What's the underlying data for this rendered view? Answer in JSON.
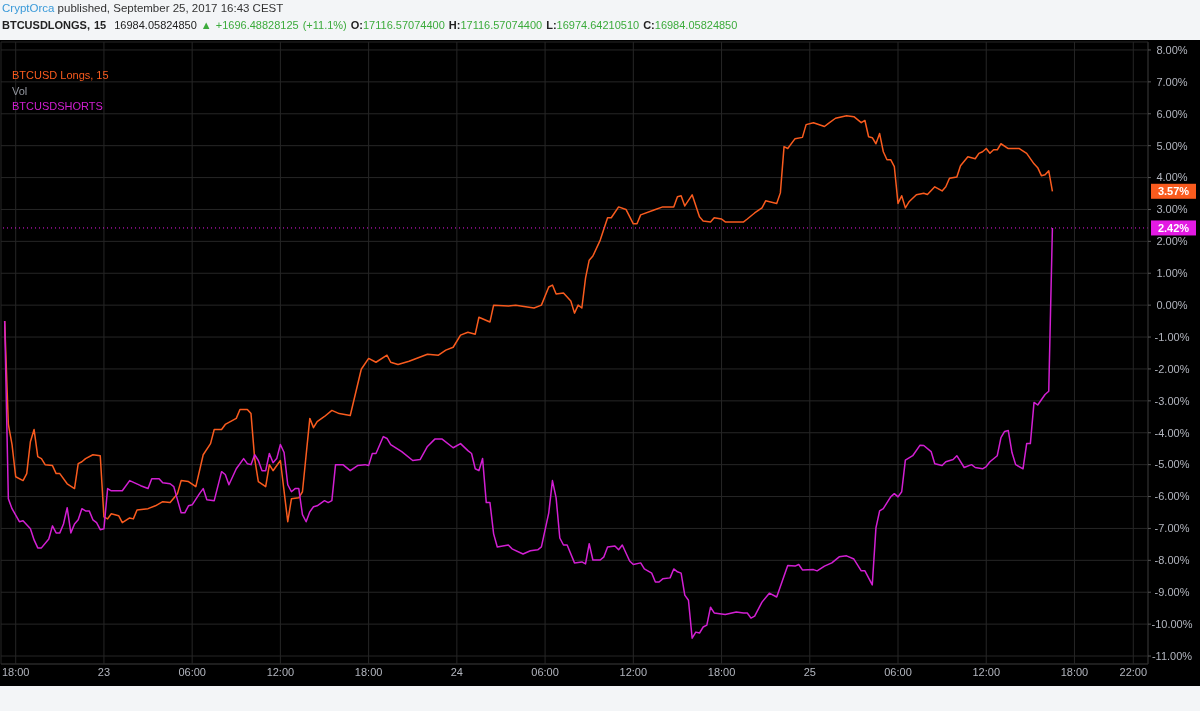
{
  "chart_data": {
    "type": "line",
    "title": "CryptOrca published, September 25, 2017 16:43 CEST",
    "subtitle": "BTCUSDLONGS, 15 16984.05824850 ▲ +1696.48828125 (+11.1%) O:17116.57074400 H:17116.57074400 L:16974.64210510 C:16984.05824850",
    "xlim": [
      "2017-09-22T17:00",
      "2017-09-25T23:00"
    ],
    "xticks": [
      {
        "value": "2017-09-22T18:00",
        "label": "18:00"
      },
      {
        "value": "2017-09-23T00:00",
        "label": "23"
      },
      {
        "value": "2017-09-23T06:00",
        "label": "06:00"
      },
      {
        "value": "2017-09-23T12:00",
        "label": "12:00"
      },
      {
        "value": "2017-09-23T18:00",
        "label": "18:00"
      },
      {
        "value": "2017-09-24T00:00",
        "label": "24"
      },
      {
        "value": "2017-09-24T06:00",
        "label": "06:00"
      },
      {
        "value": "2017-09-24T12:00",
        "label": "12:00"
      },
      {
        "value": "2017-09-24T18:00",
        "label": "18:00"
      },
      {
        "value": "2017-09-25T00:00",
        "label": "25"
      },
      {
        "value": "2017-09-25T06:00",
        "label": "06:00"
      },
      {
        "value": "2017-09-25T12:00",
        "label": "12:00"
      },
      {
        "value": "2017-09-25T18:00",
        "label": "18:00"
      },
      {
        "value": "2017-09-25T22:00",
        "label": "22:00"
      }
    ],
    "ylim": [
      -11.25,
      8.25
    ],
    "yticks": [
      {
        "value": 8,
        "label": "8.00%"
      },
      {
        "value": 7,
        "label": "7.00%"
      },
      {
        "value": 6,
        "label": "6.00%"
      },
      {
        "value": 5,
        "label": "5.00%"
      },
      {
        "value": 4,
        "label": "4.00%"
      },
      {
        "value": 3,
        "label": "3.00%"
      },
      {
        "value": 2,
        "label": "2.00%"
      },
      {
        "value": 1,
        "label": "1.00%"
      },
      {
        "value": 0,
        "label": "0.00%"
      },
      {
        "value": -1,
        "label": "-1.00%"
      },
      {
        "value": -2,
        "label": "-2.00%"
      },
      {
        "value": -3,
        "label": "-3.00%"
      },
      {
        "value": -4,
        "label": "-4.00%"
      },
      {
        "value": -5,
        "label": "-5.00%"
      },
      {
        "value": -6,
        "label": "-6.00%"
      },
      {
        "value": -7,
        "label": "-7.00%"
      },
      {
        "value": -8,
        "label": "-8.00%"
      },
      {
        "value": -9,
        "label": "-9.00%"
      },
      {
        "value": -10,
        "label": "-10.00%"
      },
      {
        "value": -11,
        "label": "-11.00%"
      }
    ],
    "grid": true,
    "legend": "top left",
    "series": [
      {
        "name": "BTCUSD Longs, 15",
        "color": "#f95b1e",
        "x": [
          "2017-09-22T17:15",
          "2017-09-22T17:30",
          "2017-09-22T17:45",
          "2017-09-22T18:00",
          "2017-09-22T18:30",
          "2017-09-22T18:45",
          "2017-09-22T19:00",
          "2017-09-22T19:15",
          "2017-09-22T19:30",
          "2017-09-22T19:45",
          "2017-09-22T20:00",
          "2017-09-22T20:30",
          "2017-09-22T20:45",
          "2017-09-22T21:00",
          "2017-09-22T21:30",
          "2017-09-22T22:00",
          "2017-09-22T22:15",
          "2017-09-22T22:30",
          "2017-09-22T22:45",
          "2017-09-22T23:15",
          "2017-09-22T23:45",
          "2017-09-23T00:00",
          "2017-09-23T00:15",
          "2017-09-23T00:30",
          "2017-09-23T01:00",
          "2017-09-23T01:15",
          "2017-09-23T01:45",
          "2017-09-23T02:00",
          "2017-09-23T02:15",
          "2017-09-23T03:00",
          "2017-09-23T03:30",
          "2017-09-23T04:00",
          "2017-09-23T04:30",
          "2017-09-23T05:00",
          "2017-09-23T05:15",
          "2017-09-23T05:45",
          "2017-09-23T06:15",
          "2017-09-23T06:45",
          "2017-09-23T07:15",
          "2017-09-23T07:30",
          "2017-09-23T08:00",
          "2017-09-23T08:15",
          "2017-09-23T09:00",
          "2017-09-23T09:15",
          "2017-09-23T09:45",
          "2017-09-23T10:00",
          "2017-09-23T10:15",
          "2017-09-23T10:30",
          "2017-09-23T11:00",
          "2017-09-23T11:15",
          "2017-09-23T11:30",
          "2017-09-23T12:00",
          "2017-09-23T12:30",
          "2017-09-23T12:45",
          "2017-09-23T13:15",
          "2017-09-23T13:30",
          "2017-09-23T14:00",
          "2017-09-23T14:15",
          "2017-09-23T14:30",
          "2017-09-23T15:00",
          "2017-09-23T15:30",
          "2017-09-23T16:00",
          "2017-09-23T16:45",
          "2017-09-23T17:30",
          "2017-09-23T18:00",
          "2017-09-23T18:30",
          "2017-09-23T19:15",
          "2017-09-23T19:30",
          "2017-09-23T20:00",
          "2017-09-23T20:45",
          "2017-09-23T22:00",
          "2017-09-23T22:45",
          "2017-09-23T23:15",
          "2017-09-23T23:45",
          "2017-09-24T00:15",
          "2017-09-24T00:45",
          "2017-09-24T01:15",
          "2017-09-24T01:30",
          "2017-09-24T02:15",
          "2017-09-24T02:30",
          "2017-09-24T03:30",
          "2017-09-24T04:00",
          "2017-09-24T05:15",
          "2017-09-24T05:45",
          "2017-09-24T06:15",
          "2017-09-24T06:30",
          "2017-09-24T06:45",
          "2017-09-24T07:15",
          "2017-09-24T07:45",
          "2017-09-24T08:00",
          "2017-09-24T08:15",
          "2017-09-24T08:30",
          "2017-09-24T08:45",
          "2017-09-24T09:00",
          "2017-09-24T09:15",
          "2017-09-24T09:45",
          "2017-09-24T10:15",
          "2017-09-24T10:30",
          "2017-09-24T11:00",
          "2017-09-24T11:30",
          "2017-09-24T12:00",
          "2017-09-24T12:15",
          "2017-09-24T12:30",
          "2017-09-24T13:30",
          "2017-09-24T14:00",
          "2017-09-24T14:45",
          "2017-09-24T15:00",
          "2017-09-24T15:15",
          "2017-09-24T15:30",
          "2017-09-24T16:00",
          "2017-09-24T16:30",
          "2017-09-24T16:45",
          "2017-09-24T17:15",
          "2017-09-24T17:30",
          "2017-09-24T18:00",
          "2017-09-24T18:15",
          "2017-09-24T19:30",
          "2017-09-24T19:45",
          "2017-09-24T20:15",
          "2017-09-24T20:45",
          "2017-09-24T21:00",
          "2017-09-24T21:45",
          "2017-09-24T22:00",
          "2017-09-24T22:15",
          "2017-09-24T22:30",
          "2017-09-24T23:00",
          "2017-09-24T23:30",
          "2017-09-24T23:45",
          "2017-09-25T00:15",
          "2017-09-25T01:00",
          "2017-09-25T01:15",
          "2017-09-25T01:45",
          "2017-09-25T02:30",
          "2017-09-25T03:00",
          "2017-09-25T03:30",
          "2017-09-25T03:45",
          "2017-09-25T04:00",
          "2017-09-25T04:15",
          "2017-09-25T04:30",
          "2017-09-25T04:45",
          "2017-09-25T05:00",
          "2017-09-25T05:15",
          "2017-09-25T05:30",
          "2017-09-25T05:45",
          "2017-09-25T06:00",
          "2017-09-25T06:15",
          "2017-09-25T06:30",
          "2017-09-25T06:45",
          "2017-09-25T07:15",
          "2017-09-25T07:45",
          "2017-09-25T08:00",
          "2017-09-25T08:30",
          "2017-09-25T09:00",
          "2017-09-25T09:15",
          "2017-09-25T09:30",
          "2017-09-25T10:00",
          "2017-09-25T10:15",
          "2017-09-25T10:45",
          "2017-09-25T11:15",
          "2017-09-25T11:30",
          "2017-09-25T11:45",
          "2017-09-25T12:00",
          "2017-09-25T12:15",
          "2017-09-25T12:30",
          "2017-09-25T12:45",
          "2017-09-25T13:00",
          "2017-09-25T13:30",
          "2017-09-25T14:15",
          "2017-09-25T14:45",
          "2017-09-25T15:15",
          "2017-09-25T15:30",
          "2017-09-25T15:45",
          "2017-09-25T16:00",
          "2017-09-25T16:15",
          "2017-09-25T16:30"
        ],
        "values": [
          -0.5,
          -3.74,
          -4.37,
          -5.38,
          -5.5,
          -5.28,
          -4.28,
          -3.9,
          -4.75,
          -4.81,
          -5,
          -5.03,
          -5.28,
          -5.28,
          -5.6,
          -5.75,
          -4.97,
          -4.91,
          -4.81,
          -4.69,
          -4.72,
          -6.64,
          -6.7,
          -6.54,
          -6.6,
          -6.82,
          -6.67,
          -6.7,
          -6.42,
          -6.38,
          -6.29,
          -6.16,
          -6.19,
          -5.91,
          -5.5,
          -5.53,
          -5.69,
          -4.69,
          -4.34,
          -3.9,
          -3.9,
          -3.74,
          -3.55,
          -3.27,
          -3.27,
          -3.4,
          -4.81,
          -5.53,
          -5.69,
          -5,
          -5.19,
          -4.87,
          -6.79,
          -6.07,
          -6.04,
          -5.85,
          -3.55,
          -3.84,
          -3.65,
          -3.49,
          -3.3,
          -3.4,
          -3.46,
          -2.01,
          -1.67,
          -1.79,
          -1.57,
          -1.79,
          -1.86,
          -1.76,
          -1.54,
          -1.57,
          -1.41,
          -1.32,
          -0.94,
          -0.85,
          -0.91,
          -0.38,
          -0.53,
          0,
          -0.03,
          0,
          -0.09,
          0,
          0.57,
          0.63,
          0.35,
          0.38,
          0.13,
          -0.25,
          0,
          -0.09,
          0.85,
          1.41,
          1.54,
          2.04,
          2.74,
          2.74,
          3.08,
          3,
          2.55,
          2.55,
          2.83,
          3,
          3.08,
          3.08,
          3.4,
          3.43,
          3.11,
          3.46,
          2.77,
          2.64,
          2.61,
          2.74,
          2.7,
          2.61,
          2.61,
          2.7,
          2.89,
          3.05,
          3.27,
          3.19,
          3.52,
          4.97,
          4.91,
          5.22,
          5.26,
          5.66,
          5.72,
          5.6,
          5.69,
          5.86,
          5.94,
          5.91,
          5.72,
          5.79,
          5.28,
          5.25,
          5.06,
          5.38,
          4.81,
          4.56,
          4.56,
          4.34,
          3.19,
          3.43,
          3.05,
          3.24,
          3.46,
          3.51,
          3.47,
          3.71,
          3.58,
          3.71,
          3.98,
          4.02,
          4.37,
          4.65,
          4.59,
          4.76,
          4.81,
          4.91,
          4.76,
          4.87,
          4.87,
          5.06,
          4.91,
          4.91,
          4.76,
          4.43,
          4.31,
          4.06,
          4.09,
          4.21,
          3.57
        ]
      },
      {
        "name": "BTCUSDSHORTS",
        "color": "#d21fd2",
        "x": [
          "2017-09-22T17:15",
          "2017-09-22T17:30",
          "2017-09-22T17:45",
          "2017-09-22T18:15",
          "2017-09-22T18:30",
          "2017-09-22T19:00",
          "2017-09-22T19:15",
          "2017-09-22T19:30",
          "2017-09-22T19:45",
          "2017-09-22T20:15",
          "2017-09-22T20:30",
          "2017-09-22T20:45",
          "2017-09-22T21:00",
          "2017-09-22T21:15",
          "2017-09-22T21:30",
          "2017-09-22T21:45",
          "2017-09-22T22:00",
          "2017-09-22T22:15",
          "2017-09-22T22:30",
          "2017-09-22T22:45",
          "2017-09-22T23:00",
          "2017-09-22T23:15",
          "2017-09-22T23:30",
          "2017-09-22T23:45",
          "2017-09-23T00:00",
          "2017-09-23T00:15",
          "2017-09-23T00:30",
          "2017-09-23T01:15",
          "2017-09-23T01:45",
          "2017-09-23T02:30",
          "2017-09-23T03:00",
          "2017-09-23T03:15",
          "2017-09-23T03:45",
          "2017-09-23T04:00",
          "2017-09-23T04:30",
          "2017-09-23T04:45",
          "2017-09-23T05:15",
          "2017-09-23T05:30",
          "2017-09-23T05:45",
          "2017-09-23T06:00",
          "2017-09-23T06:30",
          "2017-09-23T06:45",
          "2017-09-23T07:00",
          "2017-09-23T07:30",
          "2017-09-23T08:00",
          "2017-09-23T08:15",
          "2017-09-23T08:30",
          "2017-09-23T09:00",
          "2017-09-23T09:30",
          "2017-09-23T09:45",
          "2017-09-23T10:00",
          "2017-09-23T10:15",
          "2017-09-23T10:30",
          "2017-09-23T10:45",
          "2017-09-23T11:00",
          "2017-09-23T11:15",
          "2017-09-23T11:30",
          "2017-09-23T11:45",
          "2017-09-23T12:00",
          "2017-09-23T12:15",
          "2017-09-23T12:30",
          "2017-09-23T12:45",
          "2017-09-23T13:00",
          "2017-09-23T13:15",
          "2017-09-23T13:30",
          "2017-09-23T13:45",
          "2017-09-23T14:00",
          "2017-09-23T14:15",
          "2017-09-23T14:30",
          "2017-09-23T15:00",
          "2017-09-23T15:15",
          "2017-09-23T15:30",
          "2017-09-23T15:45",
          "2017-09-23T16:15",
          "2017-09-23T16:45",
          "2017-09-23T17:15",
          "2017-09-23T17:45",
          "2017-09-23T18:00",
          "2017-09-23T18:15",
          "2017-09-23T18:30",
          "2017-09-23T19:00",
          "2017-09-23T19:15",
          "2017-09-23T19:30",
          "2017-09-23T20:15",
          "2017-09-23T21:00",
          "2017-09-23T21:30",
          "2017-09-23T22:00",
          "2017-09-23T22:30",
          "2017-09-23T23:00",
          "2017-09-23T23:45",
          "2017-09-24T00:15",
          "2017-09-24T00:45",
          "2017-09-24T01:00",
          "2017-09-24T01:15",
          "2017-09-24T01:30",
          "2017-09-24T01:45",
          "2017-09-24T02:00",
          "2017-09-24T02:15",
          "2017-09-24T02:30",
          "2017-09-24T02:45",
          "2017-09-24T03:30",
          "2017-09-24T03:45",
          "2017-09-24T04:30",
          "2017-09-24T05:00",
          "2017-09-24T05:30",
          "2017-09-24T05:45",
          "2017-09-24T06:15",
          "2017-09-24T06:30",
          "2017-09-24T06:45",
          "2017-09-24T07:00",
          "2017-09-24T07:15",
          "2017-09-24T07:30",
          "2017-09-24T08:00",
          "2017-09-24T08:30",
          "2017-09-24T08:45",
          "2017-09-24T09:00",
          "2017-09-24T09:15",
          "2017-09-24T09:45",
          "2017-09-24T10:00",
          "2017-09-24T10:15",
          "2017-09-24T10:45",
          "2017-09-24T11:00",
          "2017-09-24T11:15",
          "2017-09-24T11:45",
          "2017-09-24T12:00",
          "2017-09-24T12:30",
          "2017-09-24T12:45",
          "2017-09-24T13:15",
          "2017-09-24T13:30",
          "2017-09-24T13:45",
          "2017-09-24T14:00",
          "2017-09-24T14:30",
          "2017-09-24T14:45",
          "2017-09-24T15:00",
          "2017-09-24T15:15",
          "2017-09-24T15:30",
          "2017-09-24T15:45",
          "2017-09-24T16:00",
          "2017-09-24T16:15",
          "2017-09-24T16:30",
          "2017-09-24T16:45",
          "2017-09-24T17:00",
          "2017-09-24T17:15",
          "2017-09-24T17:30",
          "2017-09-24T18:15",
          "2017-09-24T19:00",
          "2017-09-24T19:30",
          "2017-09-24T19:45",
          "2017-09-24T20:00",
          "2017-09-24T20:15",
          "2017-09-24T20:45",
          "2017-09-24T21:15",
          "2017-09-24T21:45",
          "2017-09-24T22:30",
          "2017-09-24T23:00",
          "2017-09-24T23:15",
          "2017-09-24T23:30",
          "2017-09-25T00:15",
          "2017-09-25T00:30",
          "2017-09-25T01:00",
          "2017-09-25T01:30",
          "2017-09-25T02:00",
          "2017-09-25T02:30",
          "2017-09-25T03:00",
          "2017-09-25T03:30",
          "2017-09-25T03:45",
          "2017-09-25T04:15",
          "2017-09-25T04:30",
          "2017-09-25T04:45",
          "2017-09-25T05:00",
          "2017-09-25T05:30",
          "2017-09-25T05:45",
          "2017-09-25T06:00",
          "2017-09-25T06:15",
          "2017-09-25T06:30",
          "2017-09-25T07:00",
          "2017-09-25T07:30",
          "2017-09-25T07:45",
          "2017-09-25T08:15",
          "2017-09-25T08:30",
          "2017-09-25T09:00",
          "2017-09-25T09:15",
          "2017-09-25T09:45",
          "2017-09-25T10:00",
          "2017-09-25T10:30",
          "2017-09-25T11:00",
          "2017-09-25T11:15",
          "2017-09-25T11:45",
          "2017-09-25T12:00",
          "2017-09-25T12:15",
          "2017-09-25T12:45",
          "2017-09-25T13:00",
          "2017-09-25T13:15",
          "2017-09-25T13:30",
          "2017-09-25T13:45",
          "2017-09-25T14:00",
          "2017-09-25T14:30",
          "2017-09-25T14:45",
          "2017-09-25T15:00",
          "2017-09-25T15:15",
          "2017-09-25T15:30",
          "2017-09-25T16:00",
          "2017-09-25T16:15",
          "2017-09-25T16:30"
        ],
        "values": [
          -0.5,
          -6.07,
          -6.38,
          -6.79,
          -6.76,
          -7.01,
          -7.36,
          -7.61,
          -7.61,
          -7.33,
          -6.92,
          -7.14,
          -7.14,
          -6.86,
          -6.35,
          -7.14,
          -6.86,
          -6.73,
          -6.38,
          -6.45,
          -6.45,
          -6.73,
          -6.82,
          -7.04,
          -7.01,
          -5.75,
          -5.82,
          -5.82,
          -5.5,
          -5.66,
          -5.75,
          -5.44,
          -5.44,
          -5.57,
          -5.6,
          -5.69,
          -6.51,
          -6.51,
          -6.29,
          -6.26,
          -5.91,
          -5.75,
          -6.1,
          -6.13,
          -5.22,
          -5.31,
          -5.63,
          -5.13,
          -4.81,
          -4.97,
          -5,
          -4.69,
          -4.87,
          -5.19,
          -5.19,
          -4.65,
          -4.94,
          -4.81,
          -4.37,
          -4.62,
          -5.63,
          -5.85,
          -5.75,
          -5.75,
          -6.57,
          -6.79,
          -6.48,
          -6.32,
          -6.29,
          -6.13,
          -6.19,
          -6.13,
          -5,
          -5,
          -5.19,
          -5.03,
          -5,
          -5.03,
          -4.65,
          -4.65,
          -4.12,
          -4.18,
          -4.37,
          -4.59,
          -4.87,
          -4.84,
          -4.43,
          -4.2,
          -4.2,
          -4.47,
          -4.34,
          -4.56,
          -4.65,
          -5.13,
          -5.19,
          -4.81,
          -6.19,
          -6.19,
          -7.17,
          -7.58,
          -7.52,
          -7.64,
          -7.8,
          -7.7,
          -7.67,
          -7.58,
          -6.51,
          -5.5,
          -6.04,
          -7.3,
          -7.52,
          -7.52,
          -8.08,
          -8.05,
          -8.11,
          -7.48,
          -7.99,
          -7.99,
          -7.89,
          -7.58,
          -7.55,
          -7.67,
          -7.52,
          -8.02,
          -8.13,
          -8.08,
          -8.27,
          -8.4,
          -8.68,
          -8.68,
          -8.58,
          -8.55,
          -8.27,
          -8.36,
          -8.4,
          -9.09,
          -9.25,
          -10.44,
          -10.25,
          -10.28,
          -10.09,
          -10.03,
          -9.47,
          -9.65,
          -9.7,
          -9.62,
          -9.65,
          -9.65,
          -9.81,
          -9.75,
          -9.31,
          -9.03,
          -9.15,
          -8.16,
          -8.18,
          -8.13,
          -8.3,
          -8.29,
          -8.33,
          -8.18,
          -8.08,
          -7.89,
          -7.86,
          -7.96,
          -8.33,
          -8.33,
          -8.77,
          -6.98,
          -6.45,
          -6.38,
          -6.01,
          -5.91,
          -6.01,
          -5.85,
          -4.86,
          -4.72,
          -4.39,
          -4.4,
          -4.59,
          -4.97,
          -5.03,
          -4.91,
          -4.84,
          -4.72,
          -5.09,
          -5,
          -5.09,
          -5.13,
          -5.06,
          -4.91,
          -4.72,
          -4.15,
          -3.96,
          -3.93,
          -4.62,
          -5,
          -5.13,
          -4.34,
          -4.34,
          -3.05,
          -3.13,
          -2.8,
          -2.7,
          2.42
        ]
      }
    ],
    "ref_lines": [
      {
        "axis": "y",
        "value": 2.42,
        "label": "2.42%",
        "color": "#e31ae3",
        "line_style": "dotted"
      }
    ],
    "annotations": [
      "Vol",
      "3.57%"
    ]
  }
}
